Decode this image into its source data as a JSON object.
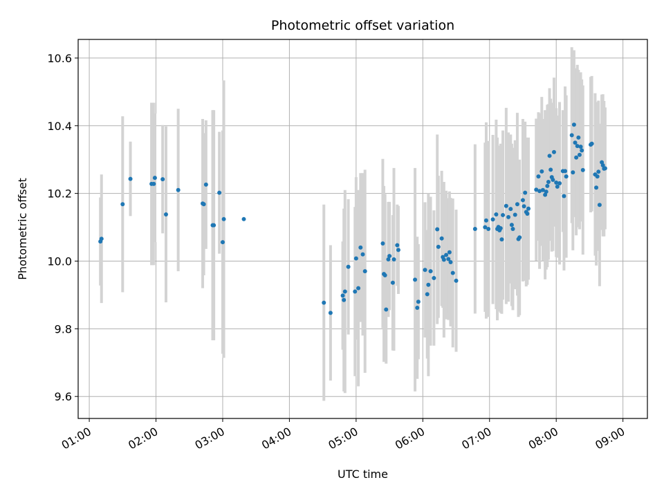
{
  "chart_data": {
    "type": "scatter",
    "title": "Photometric offset variation",
    "xlabel": "UTC time",
    "ylabel": "Photometric offset",
    "grid": true,
    "xlim": [
      "00:50",
      "09:22"
    ],
    "ylim": [
      9.535,
      10.655
    ],
    "x_ticks": [
      "01:00",
      "02:00",
      "03:00",
      "04:00",
      "05:00",
      "06:00",
      "07:00",
      "08:00",
      "09:00"
    ],
    "y_ticks": [
      9.6,
      9.8,
      10.0,
      10.2,
      10.4,
      10.6
    ],
    "y_tick_labels": [
      "9.6",
      "9.8",
      "10.0",
      "10.2",
      "10.4",
      "10.6"
    ],
    "colors": {
      "points": "#1f77b4",
      "error_bars": "#d3d3d3",
      "grid": "#b0b0b0"
    },
    "points": [
      {
        "x": "01:10",
        "y": 10.058,
        "err": 0.13
      },
      {
        "x": "01:11",
        "y": 10.066,
        "err": 0.19
      },
      {
        "x": "01:30",
        "y": 10.168,
        "err": 0.26
      },
      {
        "x": "01:37",
        "y": 10.243,
        "err": 0.11
      },
      {
        "x": "01:56",
        "y": 10.228,
        "err": 0.24
      },
      {
        "x": "01:58",
        "y": 10.228,
        "err": 0.24
      },
      {
        "x": "01:59",
        "y": 10.246,
        "err": 0.19
      },
      {
        "x": "02:06",
        "y": 10.242,
        "err": 0.16
      },
      {
        "x": "02:09",
        "y": 10.138,
        "err": 0.26
      },
      {
        "x": "02:20",
        "y": 10.21,
        "err": 0.24
      },
      {
        "x": "02:42",
        "y": 10.17,
        "err": 0.25
      },
      {
        "x": "02:43",
        "y": 10.168,
        "err": 0.21
      },
      {
        "x": "02:45",
        "y": 10.226,
        "err": 0.19
      },
      {
        "x": "02:51",
        "y": 10.106,
        "err": 0.34
      },
      {
        "x": "02:52",
        "y": 10.106,
        "err": 0.34
      },
      {
        "x": "02:57",
        "y": 10.202,
        "err": 0.18
      },
      {
        "x": "03:00",
        "y": 10.056,
        "err": 0.33
      },
      {
        "x": "03:01",
        "y": 10.124,
        "err": 0.41
      },
      {
        "x": "03:19",
        "y": 10.124,
        "err": 0.0
      },
      {
        "x": "04:31",
        "y": 9.877,
        "err": 0.29
      },
      {
        "x": "04:37",
        "y": 9.847,
        "err": 0.2
      },
      {
        "x": "04:48",
        "y": 9.898,
        "err": 0.16
      },
      {
        "x": "04:49",
        "y": 9.885,
        "err": 0.27
      },
      {
        "x": "04:50",
        "y": 9.91,
        "err": 0.3
      },
      {
        "x": "04:53",
        "y": 9.983,
        "err": 0.2
      },
      {
        "x": "04:59",
        "y": 9.91,
        "err": 0.25
      },
      {
        "x": "05:00",
        "y": 10.008,
        "err": 0.24
      },
      {
        "x": "05:02",
        "y": 9.92,
        "err": 0.29
      },
      {
        "x": "05:04",
        "y": 10.04,
        "err": 0.22
      },
      {
        "x": "05:06",
        "y": 10.02,
        "err": 0.24
      },
      {
        "x": "05:08",
        "y": 9.97,
        "err": 0.3
      },
      {
        "x": "05:24",
        "y": 10.052,
        "err": 0.25
      },
      {
        "x": "05:25",
        "y": 9.962,
        "err": 0.26
      },
      {
        "x": "05:26",
        "y": 9.958,
        "err": 0.24
      },
      {
        "x": "05:27",
        "y": 9.857,
        "err": 0.16
      },
      {
        "x": "05:29",
        "y": 10.005,
        "err": 0.17
      },
      {
        "x": "05:30",
        "y": 10.015,
        "err": 0.16
      },
      {
        "x": "05:33",
        "y": 9.936,
        "err": 0.2
      },
      {
        "x": "05:34",
        "y": 10.005,
        "err": 0.27
      },
      {
        "x": "05:37",
        "y": 10.047,
        "err": 0.12
      },
      {
        "x": "05:38",
        "y": 10.033,
        "err": 0.13
      },
      {
        "x": "05:53",
        "y": 9.945,
        "err": 0.33
      },
      {
        "x": "05:55",
        "y": 9.862,
        "err": 0.21
      },
      {
        "x": "05:56",
        "y": 9.88,
        "err": 0.17
      },
      {
        "x": "06:02",
        "y": 9.974,
        "err": 0.2
      },
      {
        "x": "06:04",
        "y": 9.902,
        "err": 0.19
      },
      {
        "x": "06:05",
        "y": 9.93,
        "err": 0.27
      },
      {
        "x": "06:07",
        "y": 9.97,
        "err": 0.22
      },
      {
        "x": "06:10",
        "y": 9.95,
        "err": 0.2
      },
      {
        "x": "06:13",
        "y": 10.094,
        "err": 0.28
      },
      {
        "x": "06:14",
        "y": 10.042,
        "err": 0.21
      },
      {
        "x": "06:17",
        "y": 10.067,
        "err": 0.2
      },
      {
        "x": "06:18",
        "y": 10.012,
        "err": 0.15
      },
      {
        "x": "06:19",
        "y": 10.004,
        "err": 0.23
      },
      {
        "x": "06:21",
        "y": 10.018,
        "err": 0.19
      },
      {
        "x": "06:23",
        "y": 10.006,
        "err": 0.18
      },
      {
        "x": "06:24",
        "y": 10.026,
        "err": 0.18
      },
      {
        "x": "06:25",
        "y": 9.997,
        "err": 0.19
      },
      {
        "x": "06:27",
        "y": 9.965,
        "err": 0.22
      },
      {
        "x": "06:30",
        "y": 9.942,
        "err": 0.21
      },
      {
        "x": "06:47",
        "y": 10.095,
        "err": 0.25
      },
      {
        "x": "06:56",
        "y": 10.1,
        "err": 0.25
      },
      {
        "x": "06:57",
        "y": 10.12,
        "err": 0.29
      },
      {
        "x": "06:59",
        "y": 10.095,
        "err": 0.26
      },
      {
        "x": "07:03",
        "y": 10.123,
        "err": 0.25
      },
      {
        "x": "07:06",
        "y": 10.138,
        "err": 0.28
      },
      {
        "x": "07:07",
        "y": 10.095,
        "err": 0.27
      },
      {
        "x": "07:08",
        "y": 10.101,
        "err": 0.24
      },
      {
        "x": "07:09",
        "y": 10.091,
        "err": 0.24
      },
      {
        "x": "07:10",
        "y": 10.097,
        "err": 0.25
      },
      {
        "x": "07:11",
        "y": 10.064,
        "err": 0.22
      },
      {
        "x": "07:12",
        "y": 10.136,
        "err": 0.25
      },
      {
        "x": "07:15",
        "y": 10.163,
        "err": 0.29
      },
      {
        "x": "07:17",
        "y": 10.13,
        "err": 0.25
      },
      {
        "x": "07:19",
        "y": 10.154,
        "err": 0.22
      },
      {
        "x": "07:20",
        "y": 10.107,
        "err": 0.24
      },
      {
        "x": "07:21",
        "y": 10.095,
        "err": 0.24
      },
      {
        "x": "07:23",
        "y": 10.137,
        "err": 0.22
      },
      {
        "x": "07:25",
        "y": 10.168,
        "err": 0.27
      },
      {
        "x": "07:26",
        "y": 10.065,
        "err": 0.23
      },
      {
        "x": "07:27",
        "y": 10.07,
        "err": 0.23
      },
      {
        "x": "07:30",
        "y": 10.18,
        "err": 0.24
      },
      {
        "x": "07:31",
        "y": 10.162,
        "err": 0.22
      },
      {
        "x": "07:32",
        "y": 10.202,
        "err": 0.21
      },
      {
        "x": "07:33",
        "y": 10.145,
        "err": 0.22
      },
      {
        "x": "07:34",
        "y": 10.14,
        "err": 0.21
      },
      {
        "x": "07:35",
        "y": 10.155,
        "err": 0.21
      },
      {
        "x": "07:42",
        "y": 10.211,
        "err": 0.21
      },
      {
        "x": "07:44",
        "y": 10.25,
        "err": 0.19
      },
      {
        "x": "07:45",
        "y": 10.207,
        "err": 0.23
      },
      {
        "x": "07:47",
        "y": 10.265,
        "err": 0.22
      },
      {
        "x": "07:48",
        "y": 10.21,
        "err": 0.21
      },
      {
        "x": "07:50",
        "y": 10.196,
        "err": 0.25
      },
      {
        "x": "07:51",
        "y": 10.205,
        "err": 0.23
      },
      {
        "x": "07:52",
        "y": 10.222,
        "err": 0.24
      },
      {
        "x": "07:53",
        "y": 10.234,
        "err": 0.23
      },
      {
        "x": "07:54",
        "y": 10.311,
        "err": 0.2
      },
      {
        "x": "07:55",
        "y": 10.27,
        "err": 0.21
      },
      {
        "x": "07:56",
        "y": 10.248,
        "err": 0.22
      },
      {
        "x": "07:57",
        "y": 10.24,
        "err": 0.21
      },
      {
        "x": "07:58",
        "y": 10.322,
        "err": 0.22
      },
      {
        "x": "08:00",
        "y": 10.232,
        "err": 0.22
      },
      {
        "x": "08:01",
        "y": 10.22,
        "err": 0.21
      },
      {
        "x": "08:03",
        "y": 10.23,
        "err": 0.24
      },
      {
        "x": "08:06",
        "y": 10.266,
        "err": 0.18
      },
      {
        "x": "08:07",
        "y": 10.192,
        "err": 0.22
      },
      {
        "x": "08:08",
        "y": 10.266,
        "err": 0.25
      },
      {
        "x": "08:09",
        "y": 10.25,
        "err": 0.24
      },
      {
        "x": "08:14",
        "y": 10.372,
        "err": 0.26
      },
      {
        "x": "08:15",
        "y": 10.262,
        "err": 0.23
      },
      {
        "x": "08:16",
        "y": 10.403,
        "err": 0.22
      },
      {
        "x": "08:17",
        "y": 10.35,
        "err": 0.22
      },
      {
        "x": "08:18",
        "y": 10.306,
        "err": 0.23
      },
      {
        "x": "08:19",
        "y": 10.34,
        "err": 0.24
      },
      {
        "x": "08:20",
        "y": 10.365,
        "err": 0.2
      },
      {
        "x": "08:21",
        "y": 10.314,
        "err": 0.22
      },
      {
        "x": "08:22",
        "y": 10.338,
        "err": 0.22
      },
      {
        "x": "08:23",
        "y": 10.327,
        "err": 0.21
      },
      {
        "x": "08:24",
        "y": 10.269,
        "err": 0.25
      },
      {
        "x": "08:31",
        "y": 10.344,
        "err": 0.2
      },
      {
        "x": "08:32",
        "y": 10.347,
        "err": 0.2
      },
      {
        "x": "08:35",
        "y": 10.256,
        "err": 0.24
      },
      {
        "x": "08:36",
        "y": 10.217,
        "err": 0.23
      },
      {
        "x": "08:37",
        "y": 10.25,
        "err": 0.22
      },
      {
        "x": "08:38",
        "y": 10.264,
        "err": 0.21
      },
      {
        "x": "08:39",
        "y": 10.166,
        "err": 0.24
      },
      {
        "x": "08:41",
        "y": 10.292,
        "err": 0.2
      },
      {
        "x": "08:42",
        "y": 10.283,
        "err": 0.21
      },
      {
        "x": "08:43",
        "y": 10.273,
        "err": 0.2
      },
      {
        "x": "08:44",
        "y": 10.274,
        "err": 0.18
      }
    ]
  }
}
